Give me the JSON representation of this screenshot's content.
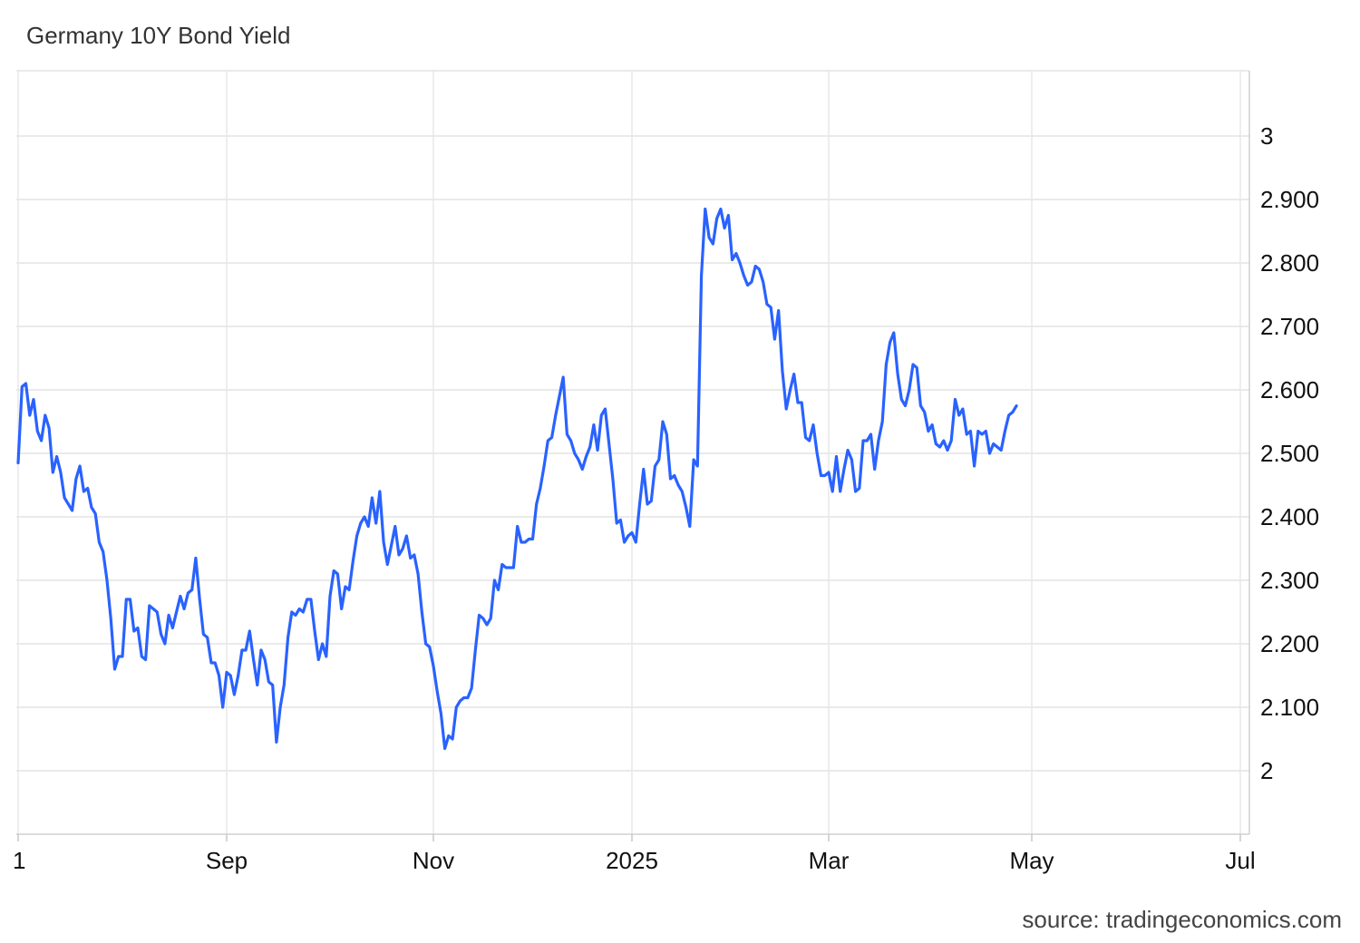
{
  "chart_data": {
    "type": "line",
    "title": "Germany 10Y Bond Yield",
    "source": "source: tradingeconomics.com",
    "line_color": "#2962ff",
    "grid": true,
    "ylim": [
      1.9,
      3.1
    ],
    "y_ticks": [
      {
        "value": 2.0,
        "label": "2"
      },
      {
        "value": 2.1,
        "label": "2.100"
      },
      {
        "value": 2.2,
        "label": "2.200"
      },
      {
        "value": 2.3,
        "label": "2.300"
      },
      {
        "value": 2.4,
        "label": "2.400"
      },
      {
        "value": 2.5,
        "label": "2.500"
      },
      {
        "value": 2.6,
        "label": "2.600"
      },
      {
        "value": 2.7,
        "label": "2.700"
      },
      {
        "value": 2.8,
        "label": "2.800"
      },
      {
        "value": 2.9,
        "label": "2.900"
      },
      {
        "value": 3.0,
        "label": "3"
      }
    ],
    "xlim": [
      0,
      326
    ],
    "x_ticks": [
      {
        "value": 0,
        "label": "1"
      },
      {
        "value": 54,
        "label": "Sep"
      },
      {
        "value": 108,
        "label": "Nov"
      },
      {
        "value": 160,
        "label": "2025"
      },
      {
        "value": 211,
        "label": "Mar"
      },
      {
        "value": 264,
        "label": "May"
      },
      {
        "value": 317,
        "label": "Jul"
      }
    ],
    "series": [
      {
        "values": [
          [
            0,
            2.485
          ],
          [
            1,
            2.605
          ],
          [
            2,
            2.61
          ],
          [
            3,
            2.56
          ],
          [
            4,
            2.585
          ],
          [
            5,
            2.535
          ],
          [
            6,
            2.52
          ],
          [
            7,
            2.56
          ],
          [
            8,
            2.54
          ],
          [
            9,
            2.47
          ],
          [
            10,
            2.495
          ],
          [
            11,
            2.47
          ],
          [
            12,
            2.43
          ],
          [
            13,
            2.42
          ],
          [
            14,
            2.41
          ],
          [
            15,
            2.46
          ],
          [
            16,
            2.48
          ],
          [
            17,
            2.44
          ],
          [
            18,
            2.445
          ],
          [
            19,
            2.415
          ],
          [
            20,
            2.405
          ],
          [
            21,
            2.36
          ],
          [
            22,
            2.345
          ],
          [
            23,
            2.3
          ],
          [
            24,
            2.24
          ],
          [
            25,
            2.16
          ],
          [
            26,
            2.18
          ],
          [
            27,
            2.18
          ],
          [
            28,
            2.27
          ],
          [
            29,
            2.27
          ],
          [
            30,
            2.22
          ],
          [
            31,
            2.225
          ],
          [
            32,
            2.18
          ],
          [
            33,
            2.175
          ],
          [
            34,
            2.26
          ],
          [
            35,
            2.255
          ],
          [
            36,
            2.25
          ],
          [
            37,
            2.215
          ],
          [
            38,
            2.2
          ],
          [
            39,
            2.245
          ],
          [
            40,
            2.225
          ],
          [
            41,
            2.25
          ],
          [
            42,
            2.275
          ],
          [
            43,
            2.255
          ],
          [
            44,
            2.28
          ],
          [
            45,
            2.285
          ],
          [
            46,
            2.335
          ],
          [
            47,
            2.27
          ],
          [
            48,
            2.215
          ],
          [
            49,
            2.21
          ],
          [
            50,
            2.17
          ],
          [
            51,
            2.17
          ],
          [
            52,
            2.15
          ],
          [
            53,
            2.1
          ],
          [
            54,
            2.155
          ],
          [
            55,
            2.15
          ],
          [
            56,
            2.12
          ],
          [
            57,
            2.15
          ],
          [
            58,
            2.19
          ],
          [
            59,
            2.19
          ],
          [
            60,
            2.22
          ],
          [
            61,
            2.175
          ],
          [
            62,
            2.135
          ],
          [
            63,
            2.19
          ],
          [
            64,
            2.175
          ],
          [
            65,
            2.14
          ],
          [
            66,
            2.135
          ],
          [
            67,
            2.045
          ],
          [
            68,
            2.1
          ],
          [
            69,
            2.135
          ],
          [
            70,
            2.21
          ],
          [
            71,
            2.25
          ],
          [
            72,
            2.245
          ],
          [
            73,
            2.255
          ],
          [
            74,
            2.25
          ],
          [
            75,
            2.27
          ],
          [
            76,
            2.27
          ],
          [
            77,
            2.22
          ],
          [
            78,
            2.175
          ],
          [
            79,
            2.2
          ],
          [
            80,
            2.18
          ],
          [
            81,
            2.275
          ],
          [
            82,
            2.315
          ],
          [
            83,
            2.31
          ],
          [
            84,
            2.255
          ],
          [
            85,
            2.29
          ],
          [
            86,
            2.285
          ],
          [
            87,
            2.33
          ],
          [
            88,
            2.37
          ],
          [
            89,
            2.39
          ],
          [
            90,
            2.4
          ],
          [
            91,
            2.385
          ],
          [
            92,
            2.43
          ],
          [
            93,
            2.39
          ],
          [
            94,
            2.44
          ],
          [
            95,
            2.36
          ],
          [
            96,
            2.325
          ],
          [
            97,
            2.355
          ],
          [
            98,
            2.385
          ],
          [
            99,
            2.34
          ],
          [
            100,
            2.35
          ],
          [
            101,
            2.37
          ],
          [
            102,
            2.335
          ],
          [
            103,
            2.34
          ],
          [
            104,
            2.31
          ],
          [
            105,
            2.25
          ],
          [
            106,
            2.2
          ],
          [
            107,
            2.195
          ],
          [
            108,
            2.165
          ],
          [
            109,
            2.125
          ],
          [
            110,
            2.09
          ],
          [
            111,
            2.035
          ],
          [
            112,
            2.055
          ],
          [
            113,
            2.05
          ],
          [
            114,
            2.1
          ],
          [
            115,
            2.11
          ],
          [
            116,
            2.115
          ],
          [
            117,
            2.115
          ],
          [
            118,
            2.13
          ],
          [
            119,
            2.19
          ],
          [
            120,
            2.245
          ],
          [
            121,
            2.24
          ],
          [
            122,
            2.23
          ],
          [
            123,
            2.24
          ],
          [
            124,
            2.3
          ],
          [
            125,
            2.285
          ],
          [
            126,
            2.325
          ],
          [
            127,
            2.32
          ],
          [
            128,
            2.32
          ],
          [
            129,
            2.32
          ],
          [
            130,
            2.385
          ],
          [
            131,
            2.36
          ],
          [
            132,
            2.36
          ],
          [
            133,
            2.365
          ],
          [
            134,
            2.365
          ],
          [
            135,
            2.42
          ],
          [
            136,
            2.445
          ],
          [
            137,
            2.48
          ],
          [
            138,
            2.52
          ],
          [
            139,
            2.525
          ],
          [
            140,
            2.56
          ],
          [
            141,
            2.59
          ],
          [
            142,
            2.62
          ],
          [
            143,
            2.53
          ],
          [
            144,
            2.52
          ],
          [
            145,
            2.5
          ],
          [
            146,
            2.49
          ],
          [
            147,
            2.475
          ],
          [
            148,
            2.495
          ],
          [
            149,
            2.51
          ],
          [
            150,
            2.545
          ],
          [
            151,
            2.505
          ],
          [
            152,
            2.56
          ],
          [
            153,
            2.57
          ],
          [
            154,
            2.515
          ],
          [
            155,
            2.46
          ],
          [
            156,
            2.39
          ],
          [
            157,
            2.395
          ],
          [
            158,
            2.36
          ],
          [
            159,
            2.37
          ],
          [
            160,
            2.375
          ],
          [
            161,
            2.36
          ],
          [
            162,
            2.42
          ],
          [
            163,
            2.475
          ],
          [
            164,
            2.42
          ],
          [
            165,
            2.425
          ],
          [
            166,
            2.48
          ],
          [
            167,
            2.49
          ],
          [
            168,
            2.55
          ],
          [
            169,
            2.53
          ],
          [
            170,
            2.46
          ],
          [
            171,
            2.465
          ],
          [
            172,
            2.45
          ],
          [
            173,
            2.44
          ],
          [
            174,
            2.415
          ],
          [
            175,
            2.385
          ],
          [
            176,
            2.49
          ],
          [
            177,
            2.48
          ],
          [
            178,
            2.78
          ],
          [
            179,
            2.885
          ],
          [
            180,
            2.84
          ],
          [
            181,
            2.83
          ],
          [
            182,
            2.87
          ],
          [
            183,
            2.885
          ],
          [
            184,
            2.855
          ],
          [
            185,
            2.875
          ],
          [
            186,
            2.805
          ],
          [
            187,
            2.815
          ],
          [
            188,
            2.8
          ],
          [
            189,
            2.78
          ],
          [
            190,
            2.765
          ],
          [
            191,
            2.77
          ],
          [
            192,
            2.795
          ],
          [
            193,
            2.79
          ],
          [
            194,
            2.77
          ],
          [
            195,
            2.735
          ],
          [
            196,
            2.73
          ],
          [
            197,
            2.68
          ],
          [
            198,
            2.725
          ],
          [
            199,
            2.63
          ],
          [
            200,
            2.57
          ],
          [
            201,
            2.6
          ],
          [
            202,
            2.625
          ],
          [
            203,
            2.58
          ],
          [
            204,
            2.58
          ],
          [
            205,
            2.525
          ],
          [
            206,
            2.52
          ],
          [
            207,
            2.545
          ],
          [
            208,
            2.5
          ],
          [
            209,
            2.465
          ],
          [
            210,
            2.465
          ],
          [
            211,
            2.47
          ],
          [
            212,
            2.44
          ],
          [
            213,
            2.495
          ],
          [
            214,
            2.44
          ],
          [
            215,
            2.475
          ],
          [
            216,
            2.505
          ],
          [
            217,
            2.49
          ],
          [
            218,
            2.44
          ],
          [
            219,
            2.445
          ],
          [
            220,
            2.52
          ],
          [
            221,
            2.52
          ],
          [
            222,
            2.53
          ],
          [
            223,
            2.475
          ],
          [
            224,
            2.52
          ],
          [
            225,
            2.55
          ],
          [
            226,
            2.64
          ],
          [
            227,
            2.675
          ],
          [
            228,
            2.69
          ],
          [
            229,
            2.625
          ],
          [
            230,
            2.585
          ],
          [
            231,
            2.575
          ],
          [
            232,
            2.6
          ],
          [
            233,
            2.64
          ],
          [
            234,
            2.635
          ],
          [
            235,
            2.575
          ],
          [
            236,
            2.565
          ],
          [
            237,
            2.535
          ],
          [
            238,
            2.545
          ],
          [
            239,
            2.515
          ],
          [
            240,
            2.51
          ],
          [
            241,
            2.52
          ],
          [
            242,
            2.505
          ],
          [
            243,
            2.52
          ],
          [
            244,
            2.585
          ],
          [
            245,
            2.56
          ],
          [
            246,
            2.57
          ],
          [
            247,
            2.53
          ],
          [
            248,
            2.535
          ],
          [
            249,
            2.48
          ],
          [
            250,
            2.535
          ],
          [
            251,
            2.53
          ],
          [
            252,
            2.535
          ],
          [
            253,
            2.5
          ],
          [
            254,
            2.515
          ],
          [
            255,
            2.51
          ],
          [
            256,
            2.505
          ],
          [
            257,
            2.535
          ],
          [
            258,
            2.56
          ],
          [
            259,
            2.565
          ],
          [
            260,
            2.575
          ]
        ]
      }
    ]
  }
}
